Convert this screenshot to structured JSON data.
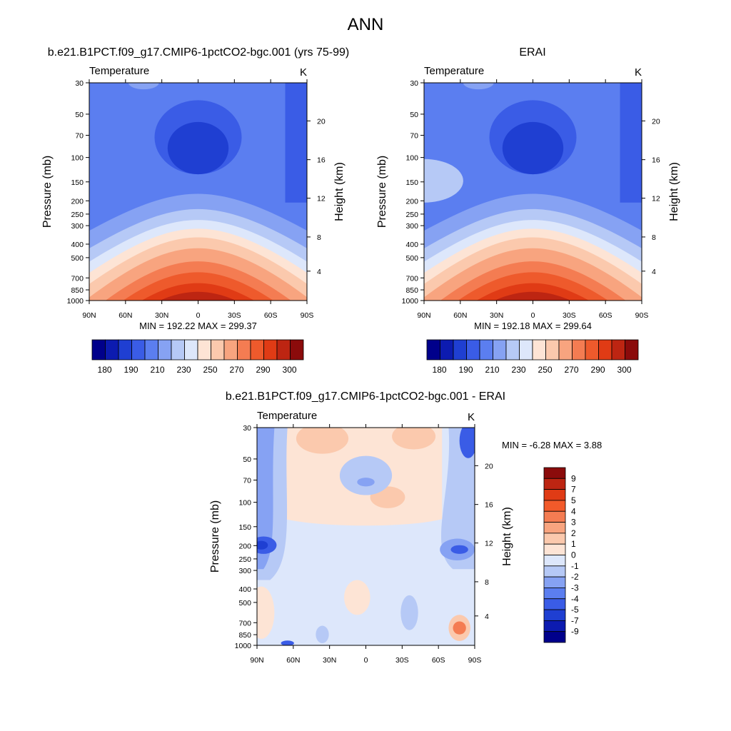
{
  "figure_title": "ANN",
  "chart_data": [
    {
      "type": "heatmap",
      "title": "b.e21.B1PCT.f09_g17.CMIP6-1pctCO2-bgc.001 (yrs 75-99)",
      "subtitle_left": "Temperature",
      "subtitle_right": "K",
      "ylabel": "Pressure (mb)",
      "ylabel_right": "Height (km)",
      "x_ticks": [
        "90N",
        "60N",
        "30N",
        "0",
        "30S",
        "60S",
        "90S"
      ],
      "y_ticks": [
        "30",
        "50",
        "70",
        "100",
        "150",
        "200",
        "250",
        "300",
        "400",
        "500",
        "700",
        "850",
        "1000"
      ],
      "y2_ticks": [
        "20",
        "16",
        "12",
        "8",
        "4"
      ],
      "stats": "MIN = 192.22  MAX = 299.37",
      "colorbar_labels": [
        "180",
        "190",
        "210",
        "230",
        "250",
        "270",
        "290",
        "300"
      ],
      "colorbar_colors": [
        "#00008b",
        "#0c1bb0",
        "#1f3fd2",
        "#3a5ce6",
        "#5b7ef0",
        "#86a2f3",
        "#b6c9f6",
        "#dde7fb",
        "#fde4d5",
        "#fbc9ad",
        "#f8a47f",
        "#f47c52",
        "#ee5a2c",
        "#e03b15",
        "#bd2512",
        "#8b0b0b"
      ]
    },
    {
      "type": "heatmap",
      "title": "ERAI",
      "subtitle_left": "Temperature",
      "subtitle_right": "K",
      "ylabel": "Pressure (mb)",
      "ylabel_right": "Height (km)",
      "x_ticks": [
        "90N",
        "60N",
        "30N",
        "0",
        "30S",
        "60S",
        "90S"
      ],
      "y_ticks": [
        "30",
        "50",
        "70",
        "100",
        "150",
        "200",
        "250",
        "300",
        "400",
        "500",
        "700",
        "850",
        "1000"
      ],
      "y2_ticks": [
        "20",
        "16",
        "12",
        "8",
        "4"
      ],
      "stats": "MIN = 192.18  MAX = 299.64",
      "colorbar_labels": [
        "180",
        "190",
        "210",
        "230",
        "250",
        "270",
        "290",
        "300"
      ],
      "colorbar_colors": [
        "#00008b",
        "#0c1bb0",
        "#1f3fd2",
        "#3a5ce6",
        "#5b7ef0",
        "#86a2f3",
        "#b6c9f6",
        "#dde7fb",
        "#fde4d5",
        "#fbc9ad",
        "#f8a47f",
        "#f47c52",
        "#ee5a2c",
        "#e03b15",
        "#bd2512",
        "#8b0b0b"
      ]
    },
    {
      "type": "heatmap",
      "title": "b.e21.B1PCT.f09_g17.CMIP6-1pctCO2-bgc.001 - ERAI",
      "subtitle_left": "Temperature",
      "subtitle_right": "K",
      "ylabel": "Pressure (mb)",
      "ylabel_right": "Height (km)",
      "x_ticks": [
        "90N",
        "60N",
        "30N",
        "0",
        "30S",
        "60S",
        "90S"
      ],
      "y_ticks": [
        "30",
        "50",
        "70",
        "100",
        "150",
        "200",
        "250",
        "300",
        "400",
        "500",
        "700",
        "850",
        "1000"
      ],
      "y2_ticks": [
        "20",
        "16",
        "12",
        "8",
        "4"
      ],
      "stats": "MIN =  -6.28  MAX =   3.88",
      "colorbar_labels": [
        "9",
        "7",
        "5",
        "4",
        "3",
        "2",
        "1",
        "0",
        "-1",
        "-2",
        "-3",
        "-4",
        "-5",
        "-7",
        "-9"
      ],
      "colorbar_colors": [
        "#8b0b0b",
        "#bd2512",
        "#e03b15",
        "#f25a2a",
        "#f47c52",
        "#f8a47f",
        "#fbc9ad",
        "#fde4d5",
        "#dde7fb",
        "#b6c9f6",
        "#86a2f3",
        "#5b7ef0",
        "#3a5ce6",
        "#1f3fd2",
        "#0c1bb0",
        "#00008b"
      ]
    }
  ]
}
